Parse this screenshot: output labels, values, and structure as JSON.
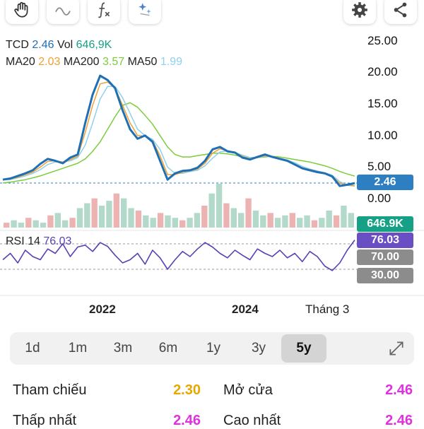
{
  "toolbar": {
    "left_icons": [
      "hand-icon",
      "wave-icon",
      "function-icon",
      "sparkle-icon"
    ],
    "right_icons": [
      "gear-icon",
      "share-icon"
    ]
  },
  "header": {
    "symbol": "TCD",
    "price": "2.46",
    "vol_label": "Vol",
    "vol_value": "646,9K",
    "ma20_label": "MA20",
    "ma20_value": "2.03",
    "ma200_label": "MA200",
    "ma200_value": "3.57",
    "ma50_label": "MA50",
    "ma50_value": "1.99"
  },
  "colors": {
    "price": "#1f6fb5",
    "ma20": "#f0a030",
    "ma200": "#7ccc3c",
    "ma50": "#8fd0ee",
    "rsi": "#5a3fb5",
    "tag_price": "#2e7fc2",
    "tag_vol": "#16a085",
    "tag_rsi": "#6a4fc4",
    "tag_level": "#8c8c8c",
    "orange": "#e6a800",
    "magenta": "#e030e0"
  },
  "chart_data": {
    "type": "line",
    "price_axis": {
      "ticks": [
        "25.00",
        "20.00",
        "15.00",
        "10.00",
        "5.00",
        "0.00"
      ],
      "ylim": [
        0,
        25
      ]
    },
    "x_labels": [
      "2022",
      "2024",
      "Tháng 3"
    ],
    "current_price_tag": "2.46",
    "volume_tag": "646.9K",
    "series": [
      {
        "name": "TCD",
        "values": [
          3.0,
          3.2,
          3.6,
          4.0,
          4.5,
          5.5,
          6.3,
          6.0,
          5.6,
          6.5,
          7.0,
          12.0,
          16.5,
          19.5,
          18.8,
          17.5,
          14.0,
          11.0,
          9.5,
          10.0,
          9.0,
          6.0,
          3.0,
          4.0,
          4.4,
          4.5,
          4.9,
          6.0,
          7.8,
          8.2,
          7.5,
          7.3,
          6.5,
          6.2,
          6.6,
          7.0,
          6.6,
          6.3,
          6.0,
          5.4,
          4.8,
          4.5,
          4.2,
          4.0,
          3.5,
          2.0,
          2.2,
          2.46
        ]
      },
      {
        "name": "MA20",
        "values": [
          3.0,
          3.1,
          3.4,
          3.8,
          4.2,
          5.0,
          5.9,
          6.0,
          5.8,
          6.2,
          6.7,
          10.5,
          14.8,
          18.2,
          18.5,
          17.5,
          14.8,
          12.0,
          10.0,
          9.9,
          9.2,
          6.8,
          3.8,
          3.8,
          4.2,
          4.4,
          4.7,
          5.6,
          7.2,
          7.9,
          7.6,
          7.3,
          6.7,
          6.3,
          6.5,
          6.8,
          6.6,
          6.3,
          6.0,
          5.5,
          4.9,
          4.6,
          4.3,
          4.0,
          3.6,
          2.4,
          2.2,
          2.03
        ]
      },
      {
        "name": "MA50",
        "values": [
          3.0,
          3.0,
          3.3,
          3.6,
          4.0,
          4.6,
          5.4,
          5.8,
          5.8,
          6.0,
          6.5,
          8.5,
          12.0,
          15.8,
          17.8,
          17.8,
          16.0,
          13.5,
          11.0,
          10.0,
          9.4,
          7.8,
          5.0,
          4.0,
          4.0,
          4.3,
          4.5,
          5.2,
          6.4,
          7.4,
          7.6,
          7.3,
          6.9,
          6.5,
          6.5,
          6.7,
          6.6,
          6.4,
          6.1,
          5.7,
          5.1,
          4.7,
          4.4,
          4.1,
          3.7,
          2.7,
          2.1,
          1.99
        ]
      },
      {
        "name": "MA200",
        "values": [
          2.5,
          2.6,
          2.8,
          3.0,
          3.3,
          3.6,
          4.0,
          4.4,
          4.8,
          5.2,
          5.6,
          6.3,
          7.5,
          9.0,
          11.0,
          13.0,
          14.8,
          15.2,
          14.5,
          13.2,
          11.8,
          10.0,
          8.2,
          7.0,
          6.6,
          6.6,
          6.8,
          7.0,
          7.2,
          7.2,
          7.1,
          6.9,
          6.6,
          6.5,
          6.5,
          6.6,
          6.7,
          6.6,
          6.4,
          6.2,
          6.0,
          5.8,
          5.5,
          5.2,
          4.8,
          4.3,
          3.9,
          3.57
        ]
      }
    ],
    "volume": {
      "values": [
        2,
        3,
        2,
        4,
        3,
        2,
        5,
        6,
        3,
        4,
        8,
        10,
        12,
        9,
        11,
        14,
        12,
        8,
        7,
        5,
        4,
        6,
        5,
        4,
        3,
        4,
        6,
        9,
        14,
        18,
        10,
        8,
        6,
        12,
        7,
        5,
        6,
        4,
        5,
        6,
        4,
        5,
        3,
        4,
        7,
        5,
        9,
        6
      ]
    },
    "rsi": {
      "label": "RSI 14",
      "value_label": "76.03",
      "levels": [
        "70.00",
        "30.00"
      ],
      "values": [
        45,
        55,
        40,
        60,
        50,
        45,
        62,
        55,
        70,
        50,
        65,
        68,
        58,
        72,
        66,
        52,
        40,
        45,
        55,
        38,
        60,
        48,
        30,
        45,
        58,
        50,
        62,
        72,
        65,
        55,
        48,
        60,
        52,
        45,
        62,
        55,
        50,
        60,
        48,
        55,
        42,
        58,
        50,
        35,
        28,
        40,
        60,
        76
      ]
    }
  },
  "periods": {
    "items": [
      "1d",
      "1m",
      "3m",
      "6m",
      "1y",
      "3y",
      "5y"
    ],
    "selected": "5y",
    "expand_icon": "expand-icon"
  },
  "stats": {
    "ref_label": "Tham chiếu",
    "ref_value": "2.30",
    "open_label": "Mở cửa",
    "open_value": "2.46",
    "low_label": "Thấp nhất",
    "low_value": "2.46",
    "high_label": "Cao nhất",
    "high_value": "2.46"
  }
}
